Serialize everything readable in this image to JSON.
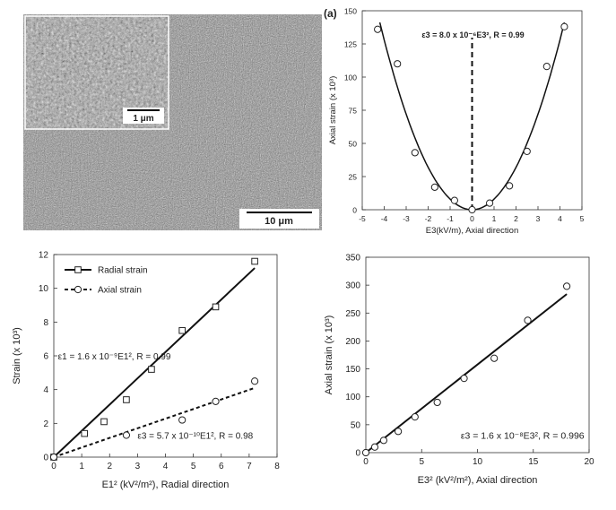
{
  "sem_image": {
    "scale_main": "10 μm",
    "scale_inset": "1 μm"
  },
  "chart_data": [
    {
      "type": "scatter",
      "panel_label": "(a)",
      "xlabel": "E3(kV/m), Axial direction",
      "ylabel": "Axial strain (x 10³)",
      "xlim": [
        -5,
        5
      ],
      "ylim": [
        0,
        150
      ],
      "xticks": [
        -5,
        -4,
        -3,
        -2,
        -1,
        0,
        1,
        2,
        3,
        4,
        5
      ],
      "yticks": [
        0,
        25,
        50,
        75,
        100,
        125,
        150
      ],
      "annotation": "ε3 = 8.0 x 10⁻⁶E3², R = 0.99",
      "series": [
        {
          "marker": "circle",
          "x": [
            -4.3,
            -3.4,
            -2.6,
            -1.7,
            -0.8,
            0.0,
            0.8,
            1.7,
            2.5,
            3.4,
            4.2
          ],
          "y": [
            136,
            110,
            43,
            17,
            7,
            0,
            5,
            18,
            44,
            108,
            138
          ]
        }
      ],
      "fit": {
        "form": "y = a*x^2",
        "a": 8.0,
        "style": "solid"
      },
      "vertical_line": {
        "x": 0,
        "style": "dashed"
      }
    },
    {
      "type": "scatter",
      "xlabel": "E1² (kV²/m²), Radial direction",
      "ylabel": "Strain (x 10³)",
      "xlim": [
        0,
        8
      ],
      "ylim": [
        0,
        12
      ],
      "xticks": [
        0,
        1,
        2,
        3,
        4,
        5,
        6,
        7,
        8
      ],
      "yticks": [
        0,
        2,
        4,
        6,
        8,
        10,
        12
      ],
      "legend": {
        "placement": "top-left",
        "entries": [
          "Radial strain",
          "Axial strain"
        ]
      },
      "annotations": [
        "ε1 = 1.6 x 10⁻⁹E1², R = 0.99",
        "ε3 = 5.7 x 10⁻¹⁰E1², R = 0.98"
      ],
      "series": [
        {
          "name": "Radial strain",
          "marker": "square",
          "x": [
            0.0,
            1.1,
            1.8,
            2.6,
            3.5,
            4.6,
            5.8,
            7.2
          ],
          "y": [
            0.0,
            1.4,
            2.1,
            3.4,
            5.2,
            7.5,
            8.9,
            11.6
          ],
          "fit": {
            "x": [
              0,
              7.2
            ],
            "y": [
              0,
              11.2
            ],
            "style": "solid"
          }
        },
        {
          "name": "Axial strain",
          "marker": "circle",
          "x": [
            0.0,
            2.6,
            4.6,
            5.8,
            7.2
          ],
          "y": [
            0.0,
            1.3,
            2.2,
            3.3,
            4.5
          ],
          "fit": {
            "x": [
              0,
              7.2
            ],
            "y": [
              0,
              4.1
            ],
            "style": "dashed"
          }
        }
      ]
    },
    {
      "type": "scatter",
      "xlabel": "E3² (kV²/m²), Axial direction",
      "ylabel": "Axial strain (x 10³)",
      "xlim": [
        0,
        20
      ],
      "ylim": [
        0,
        350
      ],
      "xticks": [
        0,
        5,
        10,
        15,
        20
      ],
      "yticks": [
        0,
        50,
        100,
        150,
        200,
        250,
        300,
        350
      ],
      "annotation": "ε3 = 1.6 x 10⁻⁸E3², R = 0.996",
      "series": [
        {
          "marker": "circle",
          "x": [
            0.0,
            0.8,
            1.6,
            2.9,
            4.4,
            6.4,
            8.8,
            11.5,
            14.5,
            18.0
          ],
          "y": [
            0,
            10,
            22,
            38,
            64,
            90,
            133,
            169,
            237,
            298
          ],
          "fit": {
            "x": [
              0,
              18
            ],
            "y": [
              0,
              284
            ],
            "style": "solid"
          }
        }
      ]
    }
  ]
}
